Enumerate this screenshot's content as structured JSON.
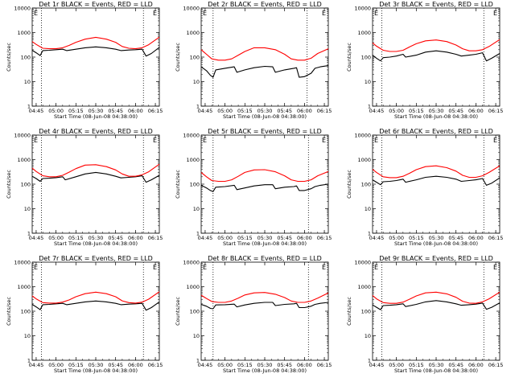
{
  "figure": {
    "panel_title_suffix": "BLACK = Events, RED = LLD",
    "xlabel": "Start Time (08-Jun-08 04:38:00)",
    "ylabel": "Counts/sec",
    "x_ticks": [
      "04:45",
      "05:00",
      "05:15",
      "05:30",
      "05:45",
      "06:00",
      "06:15"
    ],
    "y_ticks": [
      "1",
      "10",
      "100",
      "1000",
      "10000"
    ],
    "corner_marks": [
      "E",
      "E"
    ],
    "colors": {
      "events": "#000000",
      "lld": "#ff0000",
      "marker": "#000000"
    }
  },
  "chart_data": [
    {
      "type": "line",
      "title": "Det 1r BLACK = Events, RED = LLD",
      "xlabel": "Start Time (08-Jun-08 04:38:00)",
      "ylabel": "Counts/sec",
      "x_range": [
        "04:42",
        "06:18"
      ],
      "ylim": [
        1,
        10000
      ],
      "yscale": "log",
      "vlines": [
        "04:49",
        "06:06"
      ],
      "series": [
        {
          "name": "Events",
          "color": "#000000",
          "x": [
            "04:42",
            "04:45",
            "04:48",
            "04:50",
            "04:55",
            "05:00",
            "05:05",
            "05:08",
            "05:15",
            "05:22",
            "05:30",
            "05:38",
            "05:45",
            "05:49",
            "05:55",
            "06:00",
            "06:05",
            "06:08",
            "06:12",
            "06:18"
          ],
          "values": [
            190,
            150,
            115,
            185,
            190,
            200,
            210,
            185,
            210,
            240,
            260,
            240,
            210,
            185,
            195,
            200,
            210,
            110,
            140,
            250
          ]
        },
        {
          "name": "LLD",
          "color": "#ff0000",
          "x": [
            "04:42",
            "04:45",
            "04:50",
            "04:55",
            "05:00",
            "05:05",
            "05:10",
            "05:15",
            "05:22",
            "05:30",
            "05:38",
            "05:45",
            "05:50",
            "05:55",
            "06:00",
            "06:05",
            "06:10",
            "06:18"
          ],
          "values": [
            430,
            330,
            230,
            220,
            220,
            240,
            300,
            400,
            540,
            640,
            540,
            400,
            270,
            230,
            220,
            240,
            320,
            650
          ]
        }
      ]
    },
    {
      "type": "line",
      "title": "Det 2r BLACK = Events, RED = LLD",
      "xlabel": "Start Time (08-Jun-08 04:38:00)",
      "ylabel": "Counts/sec",
      "x_range": [
        "04:42",
        "06:18"
      ],
      "ylim": [
        1,
        10000
      ],
      "yscale": "log",
      "vlines": [
        "04:51",
        "06:02"
      ],
      "series": [
        {
          "name": "Events",
          "color": "#000000",
          "x": [
            "04:42",
            "04:46",
            "04:49",
            "04:51",
            "04:53",
            "05:00",
            "05:07",
            "05:09",
            "05:15",
            "05:22",
            "05:30",
            "05:36",
            "05:38",
            "05:45",
            "05:52",
            "05:54",
            "05:56",
            "06:00",
            "06:05",
            "06:08",
            "06:12",
            "06:18"
          ],
          "values": [
            40,
            28,
            18,
            15,
            30,
            35,
            40,
            24,
            30,
            37,
            42,
            40,
            24,
            30,
            35,
            37,
            15,
            16,
            22,
            35,
            40,
            45
          ]
        },
        {
          "name": "LLD",
          "color": "#ff0000",
          "x": [
            "04:42",
            "04:46",
            "04:50",
            "04:55",
            "05:00",
            "05:05",
            "05:10",
            "05:15",
            "05:22",
            "05:30",
            "05:38",
            "05:45",
            "05:50",
            "05:55",
            "06:00",
            "06:05",
            "06:10",
            "06:18"
          ],
          "values": [
            200,
            130,
            85,
            75,
            75,
            85,
            120,
            170,
            240,
            240,
            200,
            130,
            85,
            75,
            75,
            90,
            140,
            220
          ]
        }
      ]
    },
    {
      "type": "line",
      "title": "Det 3r BLACK = Events, RED = LLD",
      "xlabel": "Start Time (08-Jun-08 04:38:00)",
      "ylabel": "Counts/sec",
      "x_range": [
        "04:42",
        "06:18"
      ],
      "ylim": [
        1,
        10000
      ],
      "yscale": "log",
      "vlines": [
        "04:49",
        "06:06"
      ],
      "series": [
        {
          "name": "Events",
          "color": "#000000",
          "x": [
            "04:42",
            "04:45",
            "04:48",
            "04:50",
            "04:55",
            "05:00",
            "05:05",
            "05:07",
            "05:15",
            "05:22",
            "05:30",
            "05:38",
            "05:45",
            "05:49",
            "05:55",
            "06:00",
            "06:05",
            "06:08",
            "06:12",
            "06:18"
          ],
          "values": [
            120,
            90,
            70,
            95,
            100,
            110,
            130,
            100,
            120,
            160,
            180,
            160,
            130,
            110,
            120,
            130,
            150,
            70,
            90,
            140
          ]
        },
        {
          "name": "LLD",
          "color": "#ff0000",
          "x": [
            "04:42",
            "04:45",
            "04:50",
            "04:55",
            "05:00",
            "05:05",
            "05:10",
            "05:15",
            "05:22",
            "05:30",
            "05:38",
            "05:45",
            "05:50",
            "05:55",
            "06:00",
            "06:05",
            "06:10",
            "06:18"
          ],
          "values": [
            380,
            280,
            190,
            170,
            170,
            190,
            260,
            350,
            460,
            500,
            430,
            310,
            220,
            180,
            180,
            200,
            270,
            520
          ]
        }
      ]
    },
    {
      "type": "line",
      "title": "Det 4r BLACK = Events, RED = LLD",
      "xlabel": "Start Time (08-Jun-08 04:38:00)",
      "ylabel": "Counts/sec",
      "x_range": [
        "04:42",
        "06:18"
      ],
      "ylim": [
        1,
        10000
      ],
      "yscale": "log",
      "vlines": [
        "04:49",
        "06:06"
      ],
      "series": [
        {
          "name": "Events",
          "color": "#000000",
          "x": [
            "04:42",
            "04:45",
            "04:48",
            "04:50",
            "04:55",
            "05:00",
            "05:05",
            "05:07",
            "05:15",
            "05:22",
            "05:30",
            "05:38",
            "05:45",
            "05:49",
            "05:55",
            "06:00",
            "06:05",
            "06:08",
            "06:12",
            "06:18"
          ],
          "values": [
            210,
            170,
            130,
            170,
            175,
            185,
            200,
            150,
            200,
            260,
            300,
            260,
            210,
            180,
            190,
            200,
            220,
            120,
            150,
            230
          ]
        },
        {
          "name": "LLD",
          "color": "#ff0000",
          "x": [
            "04:42",
            "04:45",
            "04:50",
            "04:55",
            "05:00",
            "05:05",
            "05:10",
            "05:15",
            "05:22",
            "05:30",
            "05:38",
            "05:45",
            "05:50",
            "05:55",
            "06:00",
            "06:05",
            "06:10",
            "06:18"
          ],
          "values": [
            450,
            330,
            220,
            200,
            200,
            230,
            310,
            430,
            600,
            620,
            520,
            380,
            260,
            210,
            210,
            240,
            320,
            650
          ]
        }
      ]
    },
    {
      "type": "line",
      "title": "Det 5r BLACK = Events, RED = LLD",
      "xlabel": "Start Time (08-Jun-08 04:38:00)",
      "ylabel": "Counts/sec",
      "x_range": [
        "04:42",
        "06:18"
      ],
      "ylim": [
        1,
        10000
      ],
      "yscale": "log",
      "vlines": [
        "04:51",
        "06:03"
      ],
      "series": [
        {
          "name": "Events",
          "color": "#000000",
          "x": [
            "04:42",
            "04:46",
            "04:49",
            "04:51",
            "04:53",
            "05:00",
            "05:07",
            "05:09",
            "05:15",
            "05:22",
            "05:30",
            "05:36",
            "05:38",
            "05:45",
            "05:52",
            "05:54",
            "05:56",
            "06:00",
            "06:05",
            "06:08",
            "06:12",
            "06:18"
          ],
          "values": [
            90,
            70,
            55,
            50,
            75,
            80,
            90,
            60,
            70,
            85,
            95,
            95,
            65,
            75,
            80,
            85,
            55,
            55,
            65,
            80,
            90,
            100
          ]
        },
        {
          "name": "LLD",
          "color": "#ff0000",
          "x": [
            "04:42",
            "04:46",
            "04:50",
            "04:55",
            "05:00",
            "05:05",
            "05:10",
            "05:15",
            "05:22",
            "05:30",
            "05:38",
            "05:45",
            "05:50",
            "05:55",
            "06:00",
            "06:05",
            "06:10",
            "06:18"
          ],
          "values": [
            300,
            200,
            140,
            130,
            130,
            150,
            210,
            300,
            380,
            390,
            320,
            220,
            150,
            130,
            130,
            150,
            220,
            330
          ]
        }
      ]
    },
    {
      "type": "line",
      "title": "Det 6r BLACK = Events, RED = LLD",
      "xlabel": "Start Time (08-Jun-08 04:38:00)",
      "ylabel": "Counts/sec",
      "x_range": [
        "04:42",
        "06:18"
      ],
      "ylim": [
        1,
        10000
      ],
      "yscale": "log",
      "vlines": [
        "04:49",
        "06:06"
      ],
      "series": [
        {
          "name": "Events",
          "color": "#000000",
          "x": [
            "04:42",
            "04:45",
            "04:48",
            "04:50",
            "04:55",
            "05:00",
            "05:05",
            "05:07",
            "05:15",
            "05:22",
            "05:30",
            "05:38",
            "05:45",
            "05:49",
            "05:55",
            "06:00",
            "06:05",
            "06:08",
            "06:12",
            "06:18"
          ],
          "values": [
            150,
            120,
            95,
            125,
            130,
            140,
            160,
            120,
            150,
            190,
            210,
            190,
            160,
            130,
            140,
            150,
            170,
            90,
            110,
            180
          ]
        },
        {
          "name": "LLD",
          "color": "#ff0000",
          "x": [
            "04:42",
            "04:45",
            "04:50",
            "04:55",
            "05:00",
            "05:05",
            "05:10",
            "05:15",
            "05:22",
            "05:30",
            "05:38",
            "05:45",
            "05:50",
            "05:55",
            "06:00",
            "06:05",
            "06:10",
            "06:18"
          ],
          "values": [
            400,
            300,
            200,
            185,
            185,
            210,
            280,
            390,
            520,
            560,
            470,
            340,
            230,
            190,
            190,
            220,
            300,
            560
          ]
        }
      ]
    },
    {
      "type": "line",
      "title": "Det 7r BLACK = Events, RED = LLD",
      "xlabel": "Start Time (08-Jun-08 04:38:00)",
      "ylabel": "Counts/sec",
      "x_range": [
        "04:42",
        "06:18"
      ],
      "ylim": [
        1,
        10000
      ],
      "yscale": "log",
      "vlines": [
        "04:49",
        "06:06"
      ],
      "series": [
        {
          "name": "Events",
          "color": "#000000",
          "x": [
            "04:42",
            "04:45",
            "04:48",
            "04:50",
            "04:55",
            "05:00",
            "05:05",
            "05:08",
            "05:15",
            "05:22",
            "05:30",
            "05:38",
            "05:45",
            "05:49",
            "05:55",
            "06:00",
            "06:05",
            "06:08",
            "06:12",
            "06:18"
          ],
          "values": [
            190,
            150,
            115,
            185,
            190,
            200,
            210,
            185,
            210,
            240,
            260,
            240,
            210,
            185,
            195,
            200,
            210,
            110,
            140,
            240
          ]
        },
        {
          "name": "LLD",
          "color": "#ff0000",
          "x": [
            "04:42",
            "04:45",
            "04:50",
            "04:55",
            "05:00",
            "05:05",
            "05:10",
            "05:15",
            "05:22",
            "05:30",
            "05:38",
            "05:45",
            "05:50",
            "05:55",
            "06:00",
            "06:05",
            "06:10",
            "06:18"
          ],
          "values": [
            420,
            320,
            225,
            215,
            215,
            235,
            290,
            390,
            520,
            600,
            520,
            390,
            265,
            225,
            215,
            235,
            310,
            620
          ]
        }
      ]
    },
    {
      "type": "line",
      "title": "Det 8r BLACK = Events, RED = LLD",
      "xlabel": "Start Time (08-Jun-08 04:38:00)",
      "ylabel": "Counts/sec",
      "x_range": [
        "04:42",
        "06:18"
      ],
      "ylim": [
        1,
        10000
      ],
      "yscale": "log",
      "vlines": [
        "04:51",
        "06:03"
      ],
      "series": [
        {
          "name": "Events",
          "color": "#000000",
          "x": [
            "04:42",
            "04:46",
            "04:49",
            "04:51",
            "04:53",
            "05:00",
            "05:07",
            "05:09",
            "05:15",
            "05:22",
            "05:30",
            "05:36",
            "05:38",
            "05:45",
            "05:52",
            "05:54",
            "05:56",
            "06:00",
            "06:05",
            "06:08",
            "06:12",
            "06:18"
          ],
          "values": [
            190,
            160,
            130,
            125,
            180,
            185,
            195,
            150,
            180,
            210,
            230,
            230,
            170,
            190,
            200,
            210,
            140,
            140,
            160,
            190,
            210,
            230
          ]
        },
        {
          "name": "LLD",
          "color": "#ff0000",
          "x": [
            "04:42",
            "04:46",
            "04:50",
            "04:55",
            "05:00",
            "05:05",
            "05:10",
            "05:15",
            "05:22",
            "05:30",
            "05:38",
            "05:45",
            "05:50",
            "05:55",
            "06:00",
            "06:05",
            "06:10",
            "06:18"
          ],
          "values": [
            450,
            330,
            250,
            230,
            230,
            260,
            340,
            460,
            560,
            580,
            490,
            360,
            260,
            230,
            230,
            260,
            340,
            560
          ]
        }
      ]
    },
    {
      "type": "line",
      "title": "Det 9r BLACK = Events, RED = LLD",
      "xlabel": "Start Time (08-Jun-08 04:38:00)",
      "ylabel": "Counts/sec",
      "x_range": [
        "04:42",
        "06:18"
      ],
      "ylim": [
        1,
        10000
      ],
      "yscale": "log",
      "vlines": [
        "04:49",
        "06:06"
      ],
      "series": [
        {
          "name": "Events",
          "color": "#000000",
          "x": [
            "04:42",
            "04:45",
            "04:48",
            "04:50",
            "04:55",
            "05:00",
            "05:05",
            "05:07",
            "05:15",
            "05:22",
            "05:30",
            "05:38",
            "05:45",
            "05:49",
            "05:55",
            "06:00",
            "06:05",
            "06:08",
            "06:12",
            "06:18"
          ],
          "values": [
            180,
            145,
            115,
            170,
            175,
            185,
            200,
            155,
            190,
            240,
            270,
            240,
            200,
            175,
            185,
            195,
            215,
            120,
            145,
            220
          ]
        },
        {
          "name": "LLD",
          "color": "#ff0000",
          "x": [
            "04:42",
            "04:45",
            "04:50",
            "04:55",
            "05:00",
            "05:05",
            "05:10",
            "05:15",
            "05:22",
            "05:30",
            "05:38",
            "05:45",
            "05:50",
            "05:55",
            "06:00",
            "06:05",
            "06:10",
            "06:18"
          ],
          "values": [
            440,
            320,
            225,
            210,
            210,
            235,
            310,
            420,
            560,
            600,
            510,
            370,
            255,
            215,
            210,
            240,
            320,
            600
          ]
        }
      ]
    }
  ]
}
